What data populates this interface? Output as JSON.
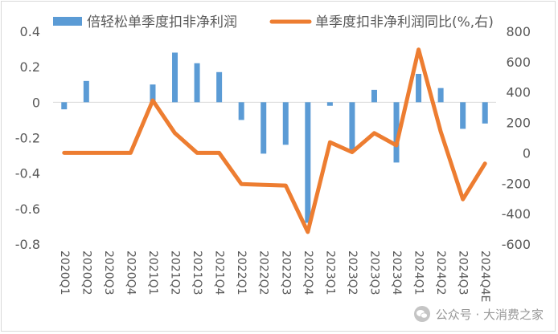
{
  "chart_data": {
    "type": "bar+line",
    "categories": [
      "2020Q1",
      "2020Q2",
      "2020Q3",
      "2020Q4",
      "2021Q1",
      "2021Q2",
      "2021Q3",
      "2021Q4",
      "2022Q1",
      "2022Q2",
      "2022Q3",
      "2022Q4",
      "2023Q1",
      "2023Q2",
      "2023Q3",
      "2023Q4",
      "2024Q1",
      "2024Q2",
      "2024Q3",
      "2024Q4E"
    ],
    "series": [
      {
        "name": "倍轻松单季度扣非净利润",
        "type": "bar",
        "axis": "left",
        "color": "#5b9bd5",
        "values": [
          -0.04,
          0.12,
          0.0,
          0.0,
          0.1,
          0.28,
          0.22,
          0.17,
          -0.1,
          -0.29,
          -0.24,
          -0.68,
          -0.02,
          -0.28,
          0.07,
          -0.34,
          0.16,
          0.08,
          -0.15,
          -0.12
        ]
      },
      {
        "name": "单季度扣非净利润同比(%,右)",
        "type": "line",
        "axis": "right",
        "color": "#ed7d31",
        "values": [
          0,
          0,
          0,
          0,
          345,
          130,
          0,
          0,
          -205,
          -210,
          -215,
          -520,
          70,
          5,
          130,
          50,
          680,
          140,
          -305,
          -70
        ]
      }
    ],
    "y_left": {
      "min": -0.8,
      "max": 0.4,
      "ticks": [
        0.4,
        0.2,
        0,
        -0.2,
        -0.4,
        -0.6,
        -0.8
      ]
    },
    "y_right": {
      "min": -600,
      "max": 800,
      "ticks": [
        800,
        600,
        400,
        200,
        0,
        -200,
        -400,
        -600
      ]
    },
    "legend_position": "top",
    "grid": false
  },
  "watermark": {
    "text": "公众号 · 大消费之家"
  }
}
